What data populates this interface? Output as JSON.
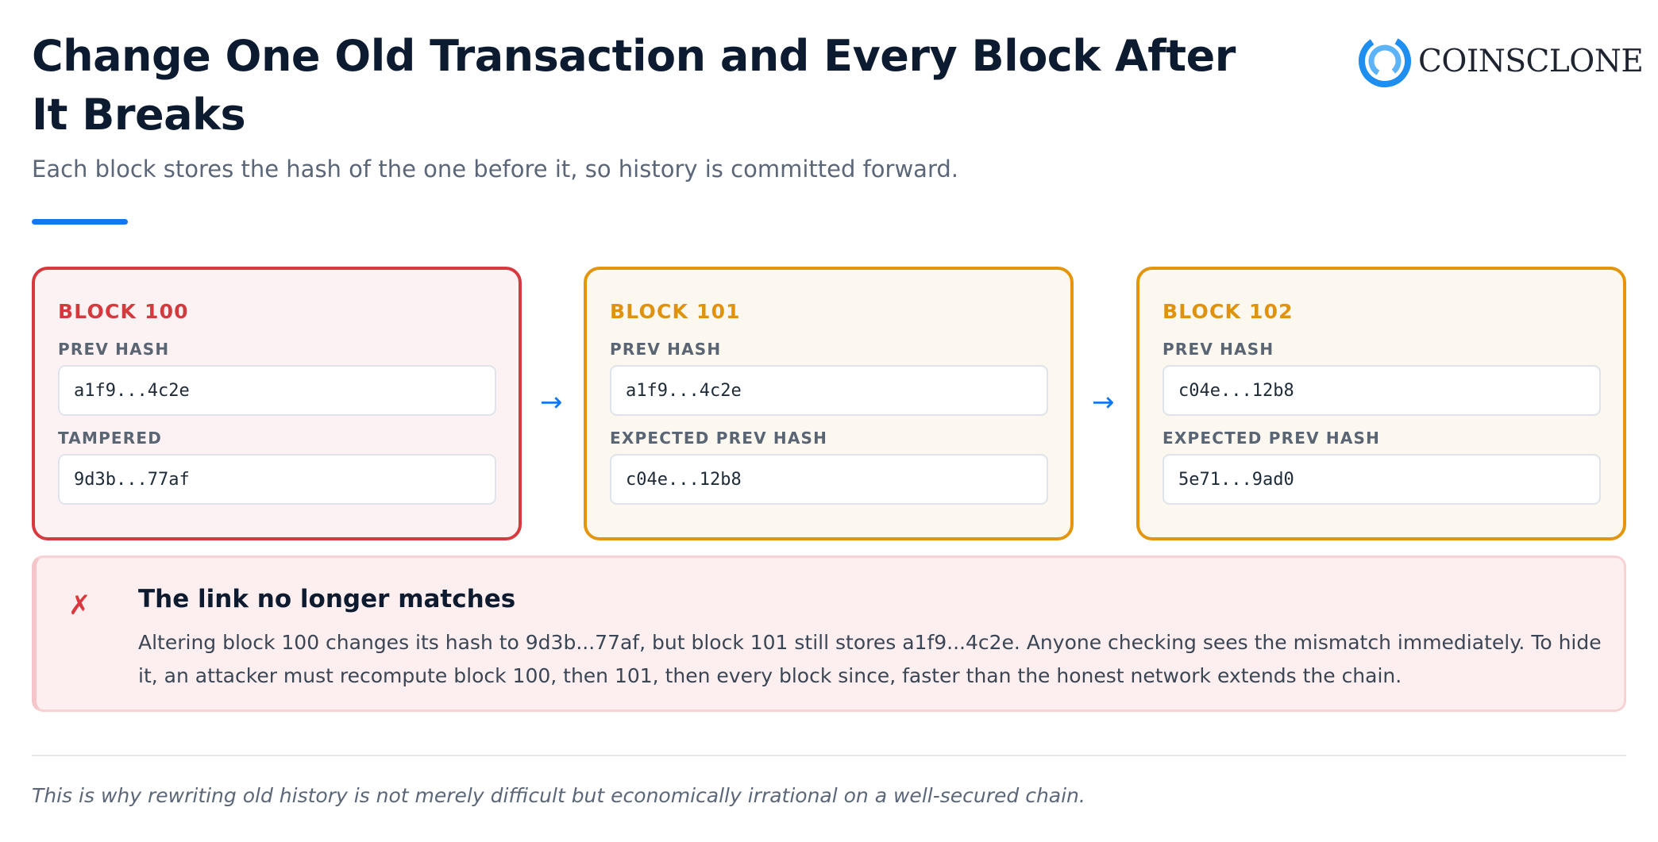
{
  "header": {
    "title": "Change One Old Transaction and Every Block After It Breaks",
    "subtitle": "Each block stores the hash of the one before it, so history is committed forward.",
    "accent_color": "#1476f0"
  },
  "logo": {
    "text": "COINSCLONE",
    "icon": "coinsclone-ring-icon"
  },
  "blocks": [
    {
      "title": "BLOCK 100",
      "status": "tampered",
      "field1_label": "PREV HASH",
      "field1_value": "a1f9...4c2e",
      "field2_label": "TAMPERED",
      "field2_value": "9d3b...77af",
      "border_color": "#d8393e"
    },
    {
      "title": "BLOCK 101",
      "status": "broken",
      "field1_label": "PREV HASH",
      "field1_value": "a1f9...4c2e",
      "field2_label": "EXPECTED PREV HASH",
      "field2_value": "c04e...12b8",
      "border_color": "#e3960d"
    },
    {
      "title": "BLOCK 102",
      "status": "broken",
      "field1_label": "PREV HASH",
      "field1_value": "c04e...12b8",
      "field2_label": "EXPECTED PREV HASH",
      "field2_value": "5e71...9ad0",
      "border_color": "#e3960d"
    }
  ],
  "arrows": [
    "→",
    "→"
  ],
  "alert": {
    "icon_glyph": "✗",
    "title": "The link no longer matches",
    "body": "Altering block 100 changes its hash to 9d3b...77af, but block 101 still stores a1f9...4c2e. Anyone checking sees the mismatch immediately. To hide it, an attacker must recompute block 100, then 101, then every block since, faster than the honest network extends the chain."
  },
  "footnote": "This is why rewriting old history is not merely difficult but economically irrational on a well-secured chain."
}
